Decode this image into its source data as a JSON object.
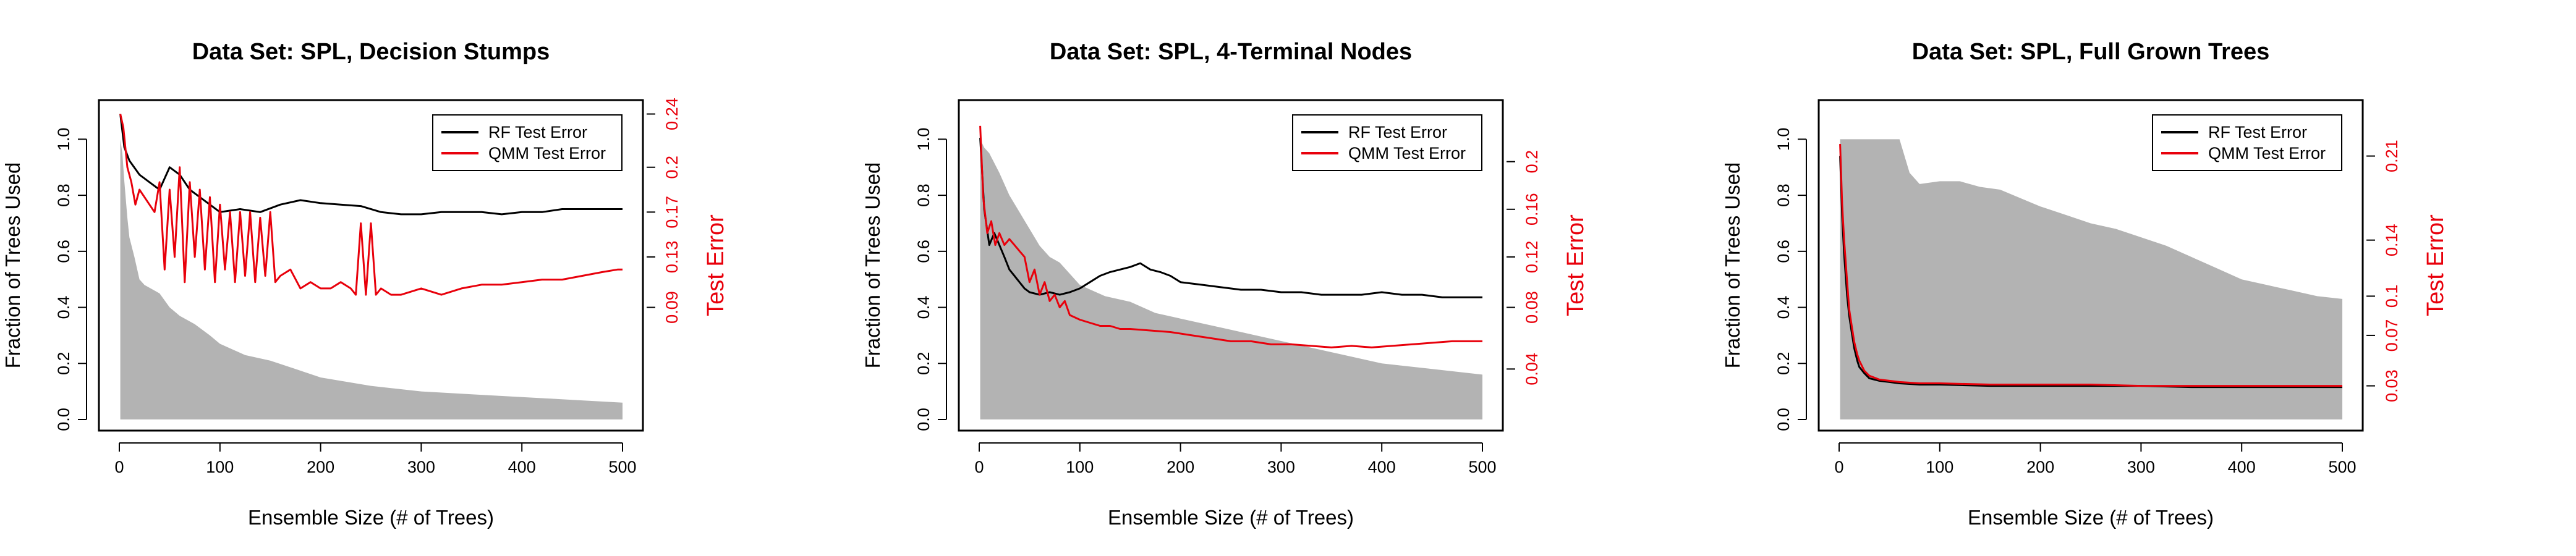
{
  "figure": {
    "background": "#ffffff"
  },
  "colors": {
    "rf": "#000000",
    "qmm": "#e8000b",
    "fraction": "#b3b3b3"
  },
  "chart_data": [
    {
      "type": "line",
      "title": "Data Set: SPL, Decision Stumps",
      "xlabel": "Ensemble Size (# of Trees)",
      "ylabel": "Fraction of Trees Used",
      "y2label": "Test Error",
      "xlim": [
        0,
        500
      ],
      "ylim": [
        0,
        1.1
      ],
      "x_ticks": [
        0,
        100,
        200,
        300,
        400,
        500
      ],
      "x_tick_labels": [
        "0",
        "100",
        "200",
        "300",
        "400",
        "500"
      ],
      "y_ticks": [
        0,
        0.2,
        0.4,
        0.6,
        0.8,
        1.0
      ],
      "y_tick_labels": [
        "0.0",
        "0.2",
        "0.4",
        "0.6",
        "0.8",
        "1.0"
      ],
      "y2_ticks": [
        0.09,
        0.13,
        0.17,
        0.2,
        0.24
      ],
      "y2_tick_labels": [
        "0.09",
        "0.13",
        "0.17",
        "0.2",
        "0.24"
      ],
      "y2_map": {
        "values": [
          0.09,
          0.13,
          0.17,
          0.2,
          0.24
        ],
        "positions": [
          0.4,
          0.58,
          0.74,
          0.9,
          1.09
        ]
      },
      "legend": {
        "position": "top-right",
        "entries": [
          "RF Test Error",
          "QMM Test Error"
        ]
      },
      "series": [
        {
          "name": "Fraction of Trees Used",
          "kind": "area",
          "axis": "left",
          "x": [
            1,
            3,
            5,
            8,
            10,
            15,
            20,
            25,
            30,
            40,
            50,
            60,
            75,
            90,
            100,
            125,
            150,
            175,
            200,
            250,
            300,
            350,
            400,
            450,
            500
          ],
          "y": [
            1.0,
            0.95,
            0.85,
            0.72,
            0.65,
            0.58,
            0.5,
            0.48,
            0.47,
            0.45,
            0.4,
            0.37,
            0.34,
            0.3,
            0.27,
            0.23,
            0.21,
            0.18,
            0.15,
            0.12,
            0.1,
            0.09,
            0.08,
            0.07,
            0.06
          ]
        },
        {
          "name": "RF Test Error",
          "kind": "line",
          "axis": "right",
          "x": [
            1,
            5,
            10,
            20,
            30,
            40,
            50,
            60,
            70,
            80,
            90,
            100,
            120,
            140,
            160,
            180,
            200,
            220,
            240,
            260,
            280,
            300,
            320,
            340,
            360,
            380,
            400,
            420,
            440,
            460,
            480,
            500
          ],
          "y": [
            0.24,
            0.215,
            0.205,
            0.195,
            0.19,
            0.185,
            0.2,
            0.195,
            0.185,
            0.18,
            0.175,
            0.17,
            0.172,
            0.17,
            0.175,
            0.178,
            0.176,
            0.175,
            0.174,
            0.17,
            0.168,
            0.168,
            0.17,
            0.17,
            0.17,
            0.168,
            0.17,
            0.17,
            0.172,
            0.172,
            0.172,
            0.172
          ]
        },
        {
          "name": "QMM Test Error",
          "kind": "line",
          "axis": "right",
          "x": [
            1,
            4,
            8,
            12,
            16,
            20,
            25,
            30,
            35,
            40,
            45,
            50,
            55,
            60,
            65,
            70,
            75,
            80,
            85,
            90,
            95,
            100,
            105,
            110,
            115,
            120,
            125,
            130,
            135,
            140,
            145,
            150,
            155,
            160,
            170,
            180,
            190,
            200,
            210,
            220,
            230,
            235,
            240,
            245,
            250,
            255,
            260,
            270,
            280,
            300,
            320,
            340,
            360,
            380,
            400,
            420,
            440,
            460,
            480,
            495,
            500
          ],
          "y": [
            0.24,
            0.23,
            0.2,
            0.19,
            0.175,
            0.185,
            0.18,
            0.175,
            0.17,
            0.19,
            0.12,
            0.185,
            0.13,
            0.2,
            0.11,
            0.19,
            0.13,
            0.185,
            0.12,
            0.18,
            0.11,
            0.175,
            0.12,
            0.17,
            0.11,
            0.17,
            0.115,
            0.17,
            0.11,
            0.165,
            0.115,
            0.17,
            0.11,
            0.115,
            0.12,
            0.105,
            0.11,
            0.105,
            0.105,
            0.11,
            0.105,
            0.1,
            0.16,
            0.1,
            0.16,
            0.1,
            0.105,
            0.1,
            0.1,
            0.105,
            0.1,
            0.105,
            0.108,
            0.108,
            0.11,
            0.112,
            0.112,
            0.115,
            0.118,
            0.12,
            0.12
          ]
        }
      ]
    },
    {
      "type": "line",
      "title": "Data Set: SPL, 4-Terminal Nodes",
      "xlabel": "Ensemble Size (# of Trees)",
      "ylabel": "Fraction of Trees Used",
      "y2label": "Test Error",
      "xlim": [
        0,
        500
      ],
      "ylim": [
        0,
        1.1
      ],
      "x_ticks": [
        0,
        100,
        200,
        300,
        400,
        500
      ],
      "x_tick_labels": [
        "0",
        "100",
        "200",
        "300",
        "400",
        "500"
      ],
      "y_ticks": [
        0,
        0.2,
        0.4,
        0.6,
        0.8,
        1.0
      ],
      "y_tick_labels": [
        "0.0",
        "0.2",
        "0.4",
        "0.6",
        "0.8",
        "1.0"
      ],
      "y2_ticks": [
        0.04,
        0.08,
        0.12,
        0.16,
        0.2
      ],
      "y2_tick_labels": [
        "0.04",
        "0.08",
        "0.12",
        "0.16",
        "0.2"
      ],
      "y2_map": {
        "values": [
          0.04,
          0.08,
          0.12,
          0.16,
          0.2
        ],
        "positions": [
          0.18,
          0.4,
          0.58,
          0.75,
          0.92
        ]
      },
      "legend": {
        "position": "top-right",
        "entries": [
          "RF Test Error",
          "QMM Test Error"
        ]
      },
      "series": [
        {
          "name": "Fraction of Trees Used",
          "kind": "area",
          "axis": "left",
          "x": [
            1,
            5,
            10,
            20,
            30,
            40,
            50,
            60,
            70,
            80,
            90,
            100,
            125,
            150,
            175,
            200,
            250,
            300,
            350,
            400,
            450,
            500
          ],
          "y": [
            1.0,
            0.97,
            0.95,
            0.88,
            0.8,
            0.74,
            0.68,
            0.62,
            0.58,
            0.56,
            0.52,
            0.48,
            0.44,
            0.42,
            0.38,
            0.36,
            0.32,
            0.28,
            0.24,
            0.2,
            0.18,
            0.16
          ]
        },
        {
          "name": "RF Test Error",
          "kind": "line",
          "axis": "right",
          "x": [
            1,
            5,
            10,
            15,
            20,
            25,
            30,
            35,
            40,
            45,
            50,
            60,
            70,
            80,
            90,
            100,
            110,
            120,
            130,
            140,
            150,
            160,
            170,
            180,
            190,
            200,
            220,
            240,
            260,
            280,
            300,
            320,
            340,
            360,
            380,
            400,
            420,
            440,
            460,
            480,
            500
          ],
          "y": [
            0.22,
            0.16,
            0.13,
            0.14,
            0.13,
            0.12,
            0.11,
            0.105,
            0.1,
            0.095,
            0.092,
            0.09,
            0.092,
            0.09,
            0.092,
            0.095,
            0.1,
            0.105,
            0.108,
            0.11,
            0.112,
            0.115,
            0.11,
            0.108,
            0.105,
            0.1,
            0.098,
            0.096,
            0.094,
            0.094,
            0.092,
            0.092,
            0.09,
            0.09,
            0.09,
            0.092,
            0.09,
            0.09,
            0.088,
            0.088,
            0.088
          ]
        },
        {
          "name": "QMM Test Error",
          "kind": "line",
          "axis": "right",
          "x": [
            1,
            4,
            8,
            12,
            16,
            20,
            25,
            30,
            35,
            40,
            45,
            50,
            55,
            60,
            65,
            70,
            75,
            80,
            85,
            90,
            100,
            110,
            120,
            130,
            140,
            150,
            170,
            190,
            210,
            230,
            250,
            270,
            290,
            310,
            330,
            350,
            370,
            390,
            410,
            430,
            450,
            470,
            490,
            500
          ],
          "y": [
            0.23,
            0.17,
            0.14,
            0.15,
            0.13,
            0.14,
            0.13,
            0.135,
            0.13,
            0.125,
            0.12,
            0.1,
            0.11,
            0.09,
            0.1,
            0.085,
            0.09,
            0.08,
            0.085,
            0.075,
            0.072,
            0.07,
            0.068,
            0.068,
            0.066,
            0.066,
            0.065,
            0.064,
            0.062,
            0.06,
            0.058,
            0.058,
            0.056,
            0.056,
            0.055,
            0.054,
            0.055,
            0.054,
            0.055,
            0.056,
            0.057,
            0.058,
            0.058,
            0.058
          ]
        }
      ]
    },
    {
      "type": "line",
      "title": "Data Set: SPL, Full Grown Trees",
      "xlabel": "Ensemble Size (# of Trees)",
      "ylabel": "Fraction of Trees Used",
      "y2label": "Test Error",
      "xlim": [
        0,
        500
      ],
      "ylim": [
        0,
        1.1
      ],
      "x_ticks": [
        0,
        100,
        200,
        300,
        400,
        500
      ],
      "x_tick_labels": [
        "0",
        "100",
        "200",
        "300",
        "400",
        "500"
      ],
      "y_ticks": [
        0,
        0.2,
        0.4,
        0.6,
        0.8,
        1.0
      ],
      "y_tick_labels": [
        "0.0",
        "0.2",
        "0.4",
        "0.6",
        "0.8",
        "1.0"
      ],
      "y2_ticks": [
        0.03,
        0.07,
        0.1,
        0.14,
        0.21
      ],
      "y2_tick_labels": [
        "0.03",
        "0.07",
        "0.1",
        "0.14",
        "0.21"
      ],
      "y2_map": {
        "values": [
          0.03,
          0.07,
          0.1,
          0.14,
          0.21
        ],
        "positions": [
          0.12,
          0.3,
          0.44,
          0.64,
          0.94
        ]
      },
      "legend": {
        "position": "top-right",
        "entries": [
          "RF Test Error",
          "QMM Test Error"
        ]
      },
      "series": [
        {
          "name": "Fraction of Trees Used",
          "kind": "area",
          "axis": "left",
          "x": [
            1,
            20,
            40,
            60,
            70,
            80,
            100,
            120,
            140,
            160,
            180,
            200,
            225,
            250,
            275,
            300,
            325,
            350,
            375,
            400,
            425,
            450,
            475,
            500
          ],
          "y": [
            1.0,
            1.0,
            1.0,
            1.0,
            0.88,
            0.84,
            0.85,
            0.85,
            0.83,
            0.82,
            0.79,
            0.76,
            0.73,
            0.7,
            0.68,
            0.65,
            0.62,
            0.58,
            0.54,
            0.5,
            0.48,
            0.46,
            0.44,
            0.43
          ]
        },
        {
          "name": "RF Test Error",
          "kind": "line",
          "axis": "right",
          "x": [
            1,
            3,
            5,
            8,
            10,
            12,
            15,
            18,
            20,
            25,
            30,
            40,
            50,
            60,
            80,
            100,
            150,
            200,
            250,
            300,
            350,
            400,
            450,
            500
          ],
          "y": [
            0.21,
            0.16,
            0.13,
            0.1,
            0.085,
            0.075,
            0.06,
            0.05,
            0.045,
            0.04,
            0.036,
            0.034,
            0.033,
            0.032,
            0.031,
            0.031,
            0.03,
            0.03,
            0.03,
            0.03,
            0.029,
            0.029,
            0.029,
            0.029
          ]
        },
        {
          "name": "QMM Test Error",
          "kind": "line",
          "axis": "right",
          "x": [
            1,
            3,
            5,
            8,
            10,
            12,
            15,
            18,
            20,
            25,
            30,
            40,
            50,
            60,
            80,
            100,
            150,
            200,
            250,
            300,
            350,
            400,
            450,
            500
          ],
          "y": [
            0.22,
            0.17,
            0.14,
            0.11,
            0.09,
            0.08,
            0.065,
            0.055,
            0.05,
            0.042,
            0.038,
            0.035,
            0.034,
            0.033,
            0.032,
            0.032,
            0.031,
            0.031,
            0.031,
            0.03,
            0.03,
            0.03,
            0.03,
            0.03
          ]
        }
      ]
    }
  ]
}
